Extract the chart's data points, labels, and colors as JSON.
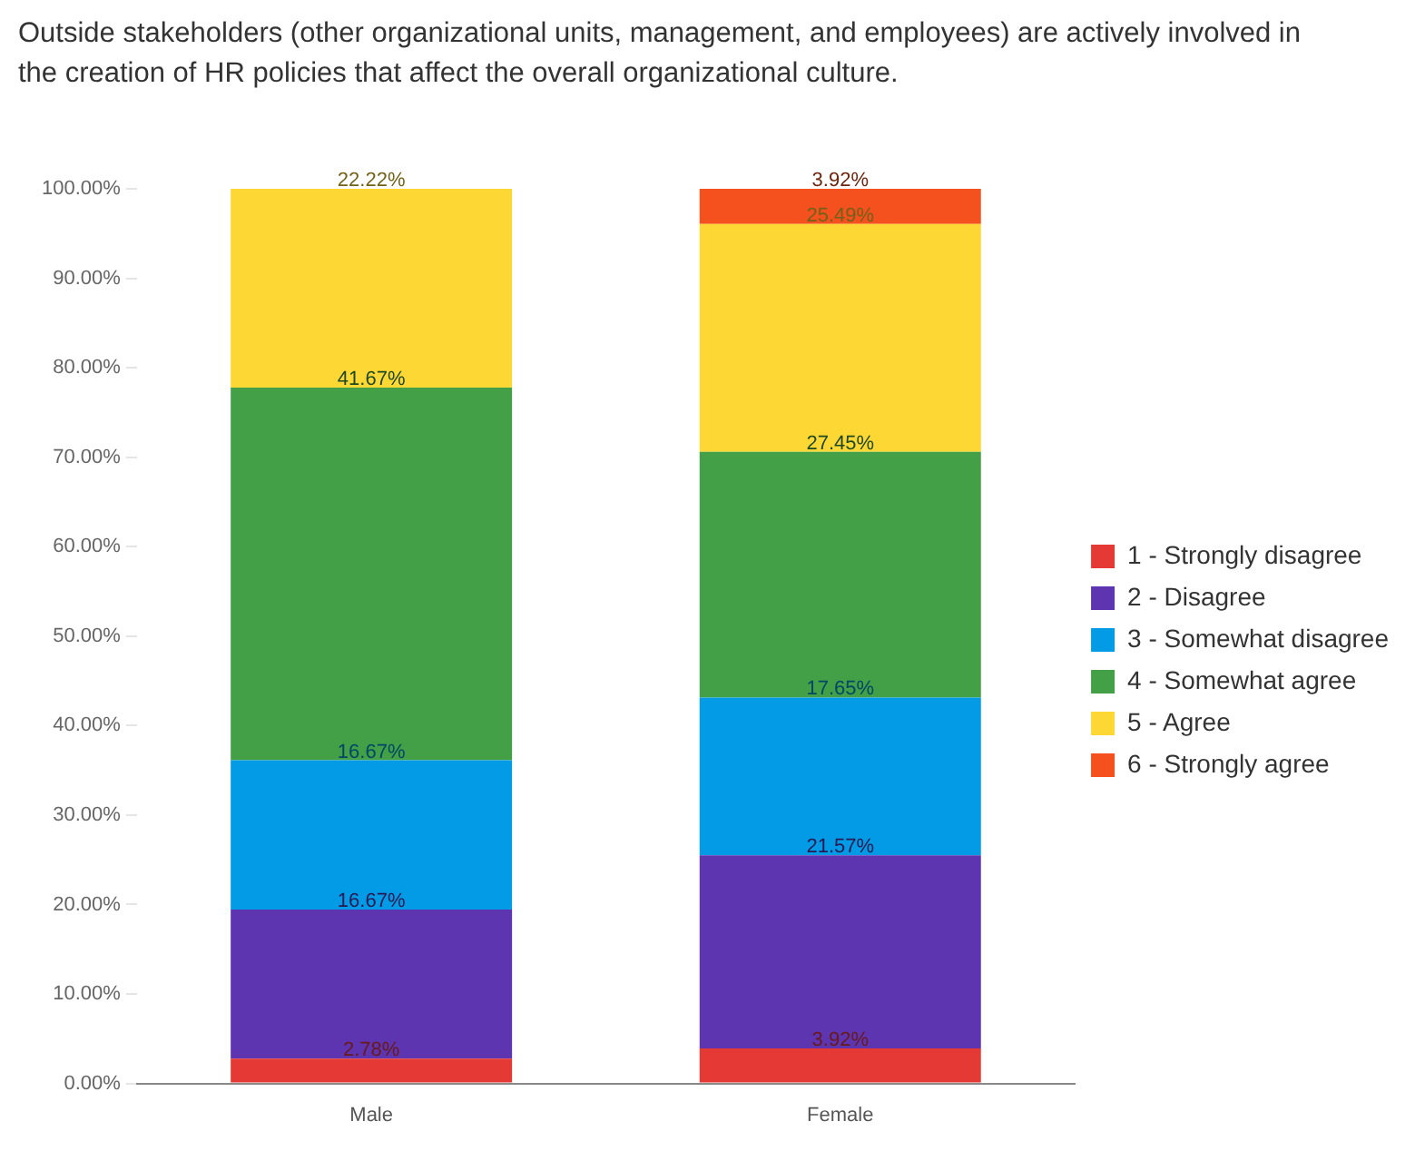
{
  "chart_data": {
    "type": "bar",
    "title": "Outside stakeholders (other organizational units, management, and employees) are actively involved in the creation of HR policies that affect the overall organizational culture.",
    "categories": [
      "Male",
      "Female"
    ],
    "stacked": true,
    "legend": "right",
    "grid": false,
    "ylim": [
      0,
      100
    ],
    "yticks": [
      {
        "value": 0,
        "label": "0.00%"
      },
      {
        "value": 10,
        "label": "10.00%"
      },
      {
        "value": 20,
        "label": "20.00%"
      },
      {
        "value": 30,
        "label": "30.00%"
      },
      {
        "value": 40,
        "label": "40.00%"
      },
      {
        "value": 50,
        "label": "50.00%"
      },
      {
        "value": 60,
        "label": "60.00%"
      },
      {
        "value": 70,
        "label": "70.00%"
      },
      {
        "value": 80,
        "label": "80.00%"
      },
      {
        "value": 90,
        "label": "90.00%"
      },
      {
        "value": 100,
        "label": "100.00%"
      }
    ],
    "series": [
      {
        "name": "1 - Strongly disagree",
        "color": "#e53935",
        "values": [
          2.78,
          3.92
        ],
        "value_labels": [
          "2.78%",
          "3.92%"
        ]
      },
      {
        "name": "2 - Disagree",
        "color": "#5e35b1",
        "values": [
          16.67,
          21.57
        ],
        "value_labels": [
          "16.67%",
          "21.57%"
        ]
      },
      {
        "name": "3 - Somewhat disagree",
        "color": "#039be5",
        "values": [
          16.67,
          17.65
        ],
        "value_labels": [
          "16.67%",
          "17.65%"
        ]
      },
      {
        "name": "4 - Somewhat agree",
        "color": "#43a047",
        "values": [
          41.67,
          27.45
        ],
        "value_labels": [
          "41.67%",
          "27.45%"
        ]
      },
      {
        "name": "5 - Agree",
        "color": "#fdd835",
        "values": [
          22.22,
          25.49
        ],
        "value_labels": [
          "22.22%",
          "25.49%"
        ]
      },
      {
        "name": "6 - Strongly agree",
        "color": "#f4511e",
        "values": [
          0,
          3.92
        ],
        "value_labels": [
          null,
          "3.92%"
        ]
      }
    ]
  }
}
